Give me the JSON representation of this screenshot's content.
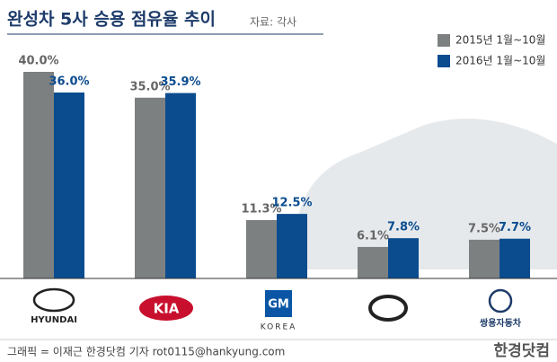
{
  "chart_data": {
    "type": "bar",
    "title": "완성차 5사 승용 점유율 추이",
    "source": "자료: 각사",
    "categories": [
      "HYUNDAI",
      "KIA",
      "GM",
      null,
      "쌍용자동차"
    ],
    "gm_sublabel": "KOREA",
    "series": [
      {
        "name": "2015년 1월~10월",
        "color": "#7d8081",
        "values": [
          40.0,
          35.0,
          11.3,
          6.1,
          7.5
        ],
        "value_labels": [
          "40.0%",
          "35.0%",
          "11.3%",
          "6.1%",
          "7.5%"
        ]
      },
      {
        "name": "2016년 1월~10월",
        "color": "#0b4c8f",
        "values": [
          36.0,
          35.9,
          12.5,
          7.8,
          7.7
        ],
        "value_labels": [
          "36.0%",
          "35.9%",
          "12.5%",
          "7.8%",
          "7.7%"
        ]
      }
    ],
    "ylim": [
      0,
      40
    ],
    "credit": "그래픽 = 이재근 한경닷컴 기자 rot0115@hankyung.com",
    "brand": "한경닷컴"
  }
}
